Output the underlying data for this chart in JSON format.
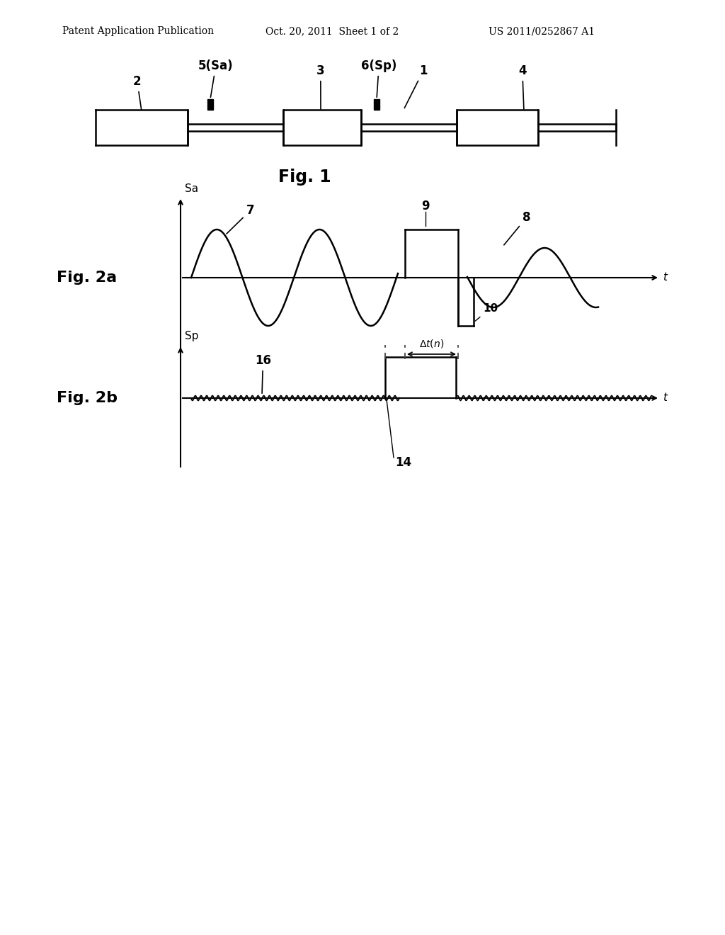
{
  "bg_color": "#ffffff",
  "header_left": "Patent Application Publication",
  "header_mid": "Oct. 20, 2011  Sheet 1 of 2",
  "header_right": "US 2011/0252867 A1",
  "fig1_label": "Fig. 1",
  "fig2a_label": "Fig. 2a",
  "fig2b_label": "Fig. 2b",
  "line_color": "#000000",
  "dashed_color": "#555555"
}
